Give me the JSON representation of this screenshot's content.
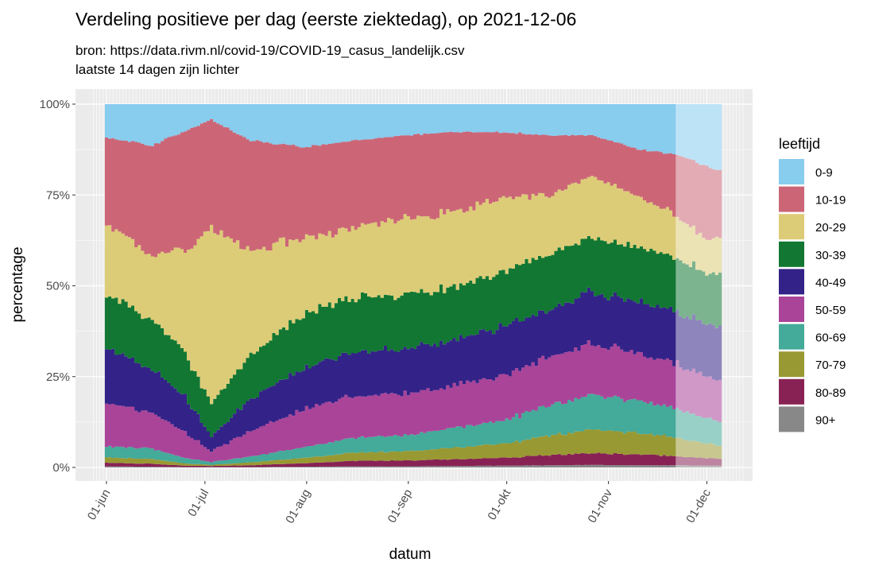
{
  "chart_data": {
    "type": "area",
    "stacked": "percent",
    "title": "Verdeling positieve per dag (eerste ziektedag), op 2021-12-06",
    "subtitle_lines": [
      "bron: https://data.rivm.nl/covid-19/COVID-19_casus_landelijk.csv",
      "laatste 14 dagen zijn lichter"
    ],
    "xlabel": "datum",
    "ylabel": "percentage",
    "ylim": [
      0,
      100
    ],
    "yticks": [
      0,
      25,
      50,
      75,
      100
    ],
    "ytick_labels": [
      "0%",
      "25%",
      "50%",
      "75%",
      "100%"
    ],
    "xlim": [
      "2021-05-31",
      "2021-12-06"
    ],
    "xticks": [
      "2021-06-01",
      "2021-07-01",
      "2021-08-01",
      "2021-09-01",
      "2021-10-01",
      "2021-11-01",
      "2021-12-01"
    ],
    "xtick_labels": [
      "01-jun",
      "01-jul",
      "01-aug",
      "01-sep",
      "01-okt",
      "01-nov",
      "01-dec"
    ],
    "lighter_from": "2021-11-22",
    "legend_title": "leeftijd",
    "legend_position": "right",
    "grid": true,
    "x": [
      "2021-06-01",
      "2021-06-15",
      "2021-06-25",
      "2021-07-03",
      "2021-07-15",
      "2021-08-01",
      "2021-08-15",
      "2021-09-01",
      "2021-09-15",
      "2021-10-01",
      "2021-10-15",
      "2021-10-27",
      "2021-11-10",
      "2021-11-22",
      "2021-12-01",
      "2021-12-05"
    ],
    "series": [
      {
        "name": "90+",
        "color": "#888888",
        "values": [
          0.3,
          0.2,
          0.1,
          0.1,
          0.1,
          0.2,
          0.3,
          0.3,
          0.4,
          0.5,
          0.6,
          0.7,
          0.6,
          0.6,
          0.5,
          0.5
        ]
      },
      {
        "name": "80-89",
        "color": "#882255",
        "values": [
          1.0,
          0.8,
          0.4,
          0.3,
          0.5,
          1.0,
          1.5,
          1.6,
          1.8,
          2.2,
          2.8,
          3.3,
          3.0,
          2.5,
          2.0,
          1.9
        ]
      },
      {
        "name": "70-79",
        "color": "#999933",
        "values": [
          1.5,
          1.3,
          0.6,
          0.3,
          0.8,
          1.5,
          2.2,
          2.5,
          3.2,
          4.0,
          5.5,
          6.5,
          6.0,
          5.0,
          4.0,
          3.5
        ]
      },
      {
        "name": "60-69",
        "color": "#44AA99",
        "values": [
          3.0,
          2.9,
          1.5,
          0.8,
          1.6,
          3.0,
          4.0,
          4.5,
          5.5,
          6.5,
          8.5,
          9.5,
          9.0,
          8.0,
          7.0,
          6.5
        ]
      },
      {
        "name": "50-59",
        "color": "#AA4499",
        "values": [
          12,
          10,
          7,
          3,
          7,
          10.5,
          11.5,
          11.6,
          11.5,
          12.5,
          13.5,
          14,
          13,
          12.5,
          11.5,
          11.5
        ]
      },
      {
        "name": "40-49",
        "color": "#332288",
        "values": [
          15,
          12,
          10,
          4,
          9,
          11.5,
          12,
          12.5,
          12.5,
          13.5,
          13,
          14.5,
          14,
          14.5,
          14.5,
          15
        ]
      },
      {
        "name": "30-39",
        "color": "#117733",
        "values": [
          15,
          13.5,
          12,
          9,
          12,
          15,
          15,
          15,
          14.5,
          15,
          15.5,
          15,
          15,
          15,
          14,
          14.5
        ]
      },
      {
        "name": "20-29",
        "color": "#DDCC77",
        "values": [
          19,
          18,
          28,
          48,
          29,
          20.5,
          19.5,
          20.5,
          21,
          20,
          16,
          17,
          14,
          11.5,
          9.5,
          10
        ]
      },
      {
        "name": "10-19",
        "color": "#CC6677",
        "values": [
          24,
          30,
          33,
          30,
          30,
          25,
          24,
          23,
          22,
          18,
          16,
          11,
          13,
          16.5,
          20,
          18.5
        ]
      },
      {
        "name": "0-9",
        "color": "#88CCEE",
        "values": [
          9.2,
          11.3,
          7.4,
          4.2,
          10,
          11.8,
          10,
          8.5,
          7.6,
          7.8,
          8.6,
          8.5,
          12.4,
          13.9,
          17,
          18.1
        ]
      }
    ]
  },
  "legend_order": [
    "0-9",
    "10-19",
    "20-29",
    "30-39",
    "40-49",
    "50-59",
    "60-69",
    "70-79",
    "80-89",
    "90+"
  ]
}
